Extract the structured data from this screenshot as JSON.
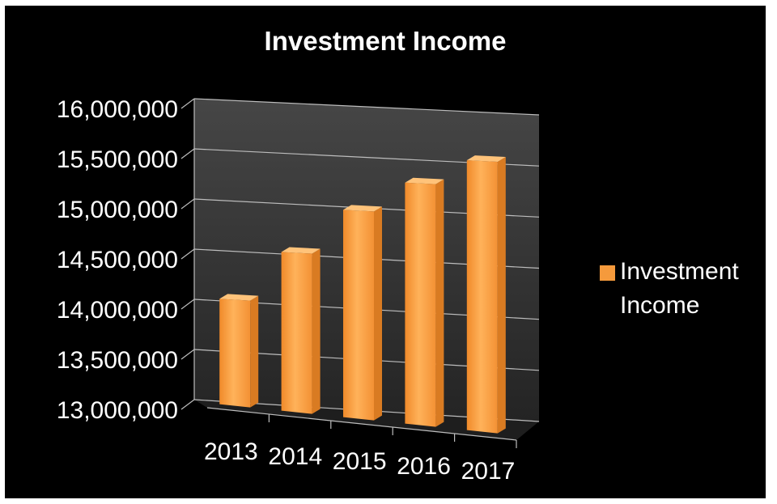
{
  "chart_data": {
    "type": "bar",
    "title": "Investment Income",
    "categories": [
      "2013",
      "2014",
      "2015",
      "2016",
      "2017"
    ],
    "series": [
      {
        "name": "Investment Income",
        "values": [
          14100000,
          14600000,
          15050000,
          15350000,
          15600000
        ]
      }
    ],
    "y_ticks": [
      "13,000,000",
      "13,500,000",
      "14,000,000",
      "14,500,000",
      "15,000,000",
      "15,500,000",
      "16,000,000"
    ],
    "ylim": [
      13000000,
      16000000
    ],
    "grid": true,
    "legend": "right",
    "colors": {
      "background": "#000000",
      "bar": "#f59a3c",
      "bar_side": "#d97b22",
      "bar_top": "#ffc37a",
      "wall": "#3a3a3a",
      "grid": "#bdbdbd",
      "text": "#ffffff"
    }
  }
}
